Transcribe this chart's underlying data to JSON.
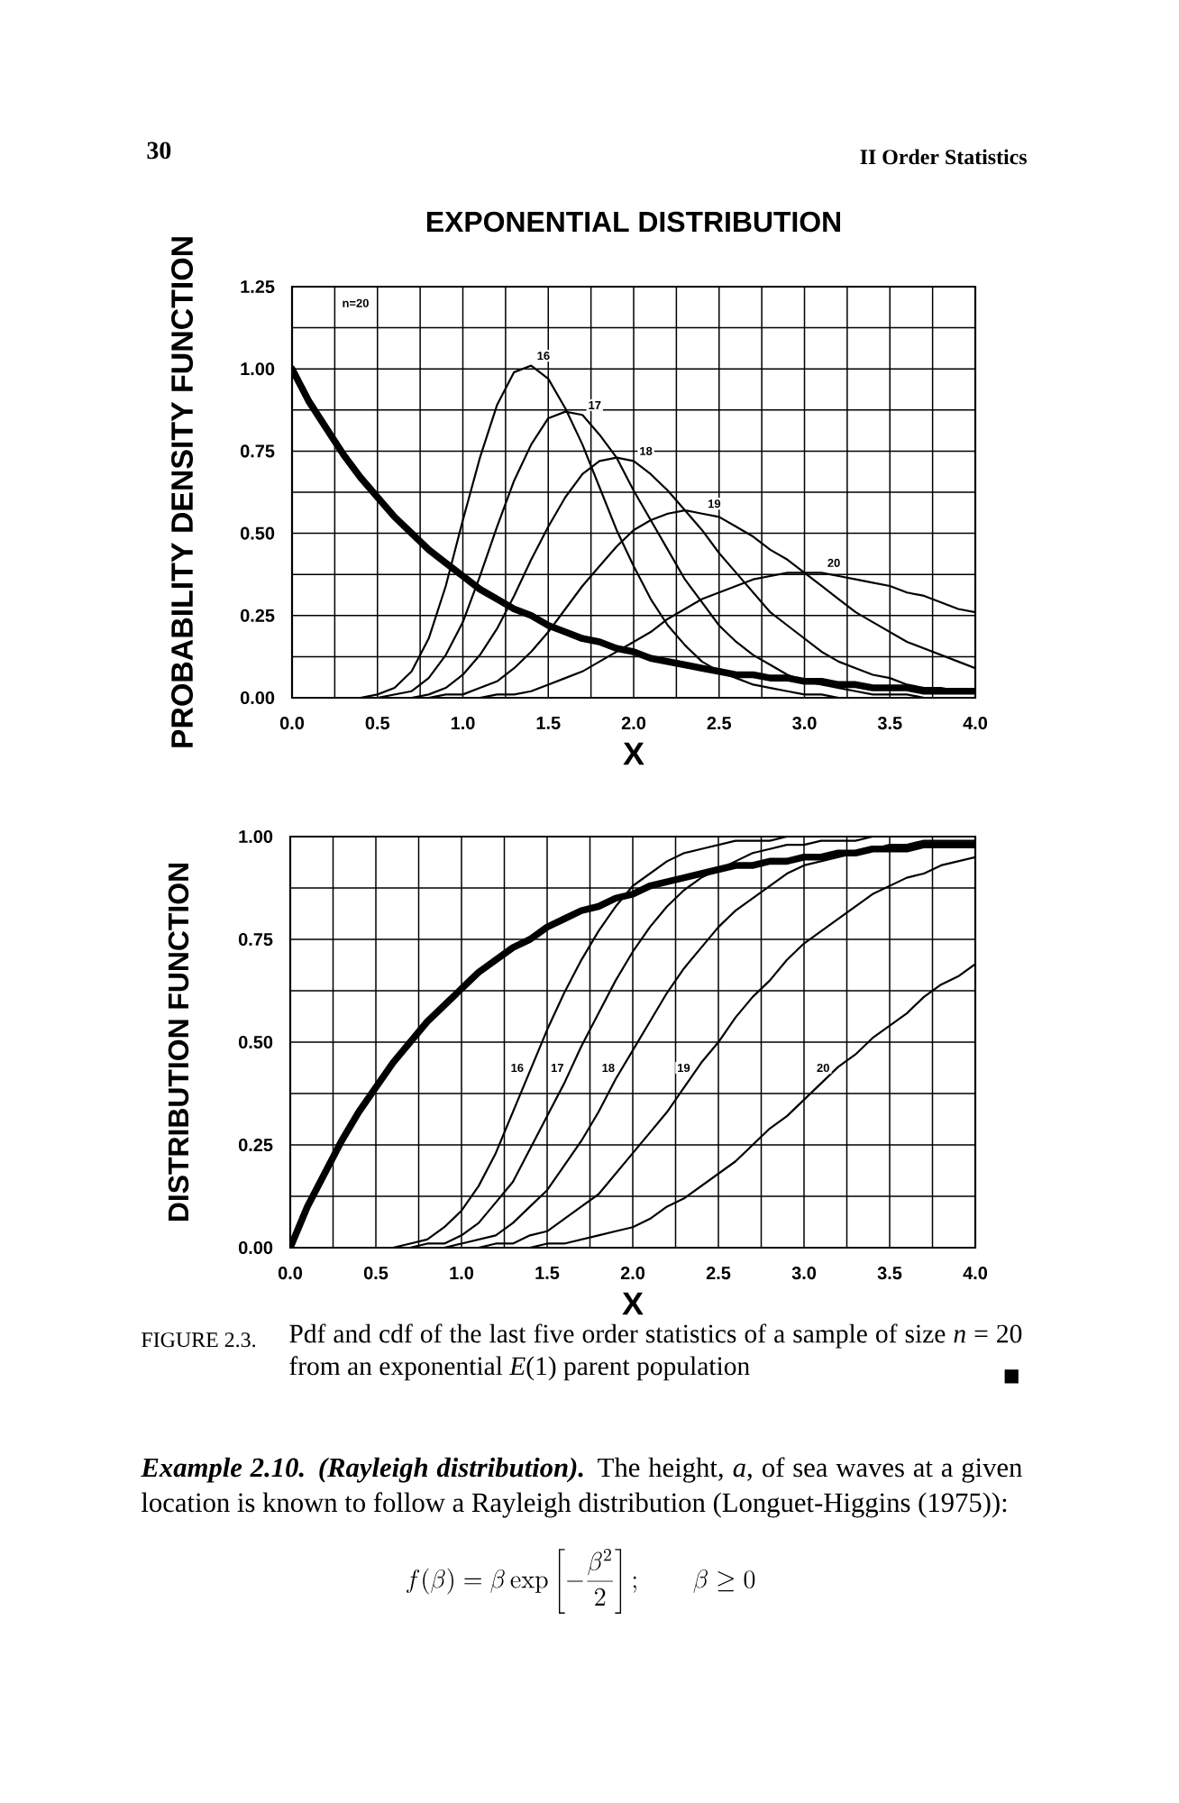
{
  "chart_data": [
    {
      "type": "line",
      "title": "EXPONENTIAL DISTRIBUTION",
      "xlabel": "X",
      "ylabel": "PROBABILITY DENSITY FUNCTION",
      "x": [
        0.0,
        0.1,
        0.2,
        0.3,
        0.4,
        0.5,
        0.6,
        0.7,
        0.8,
        0.9,
        1.0,
        1.1,
        1.2,
        1.3,
        1.4,
        1.5,
        1.6,
        1.7,
        1.8,
        1.9,
        2.0,
        2.1,
        2.2,
        2.3,
        2.4,
        2.5,
        2.6,
        2.7,
        2.8,
        2.9,
        3.0,
        3.1,
        3.2,
        3.3,
        3.4,
        3.5,
        3.6,
        3.7,
        3.8,
        3.9,
        4.0
      ],
      "series": [
        {
          "color": "#000000",
          "values": [
            1.0,
            0.9,
            0.82,
            0.74,
            0.67,
            0.61,
            0.55,
            0.5,
            0.45,
            0.41,
            0.37,
            0.33,
            0.3,
            0.27,
            0.25,
            0.22,
            0.2,
            0.18,
            0.17,
            0.15,
            0.14,
            0.12,
            0.11,
            0.1,
            0.09,
            0.08,
            0.07,
            0.07,
            0.06,
            0.06,
            0.05,
            0.05,
            0.04,
            0.04,
            0.03,
            0.03,
            0.03,
            0.02,
            0.02,
            0.02,
            0.02
          ]
        },
        {
          "name": "16",
          "color": "#000000",
          "x": [
            0.4,
            0.5,
            0.6,
            0.7,
            0.8,
            0.9,
            1.0,
            1.1,
            1.2,
            1.3,
            1.4,
            1.5,
            1.6,
            1.7,
            1.8,
            1.9,
            2.0,
            2.1,
            2.2,
            2.3,
            2.4,
            2.5,
            2.6,
            2.7,
            2.8,
            2.9,
            3.0,
            3.1,
            3.2
          ],
          "values": [
            0,
            0.01,
            0.03,
            0.08,
            0.18,
            0.34,
            0.54,
            0.73,
            0.89,
            0.99,
            1.01,
            0.97,
            0.88,
            0.77,
            0.64,
            0.51,
            0.4,
            0.3,
            0.22,
            0.16,
            0.11,
            0.08,
            0.06,
            0.04,
            0.03,
            0.02,
            0.01,
            0.01,
            0
          ]
        },
        {
          "name": "17",
          "color": "#000000",
          "x": [
            0.5,
            0.6,
            0.7,
            0.8,
            0.9,
            1.0,
            1.1,
            1.2,
            1.3,
            1.4,
            1.5,
            1.6,
            1.7,
            1.8,
            1.9,
            2.0,
            2.1,
            2.2,
            2.3,
            2.4,
            2.5,
            2.6,
            2.7,
            2.8,
            2.9,
            3.0,
            3.1,
            3.2,
            3.3,
            3.4,
            3.5,
            3.6,
            3.7
          ],
          "values": [
            0,
            0.01,
            0.02,
            0.06,
            0.13,
            0.23,
            0.37,
            0.52,
            0.66,
            0.77,
            0.85,
            0.87,
            0.86,
            0.8,
            0.73,
            0.63,
            0.54,
            0.45,
            0.36,
            0.29,
            0.22,
            0.17,
            0.13,
            0.1,
            0.07,
            0.05,
            0.04,
            0.03,
            0.02,
            0.01,
            0.01,
            0.01,
            0
          ]
        },
        {
          "name": "18",
          "color": "#000000",
          "x": [
            0.7,
            0.8,
            0.9,
            1.0,
            1.1,
            1.2,
            1.3,
            1.4,
            1.5,
            1.6,
            1.7,
            1.8,
            1.9,
            2.0,
            2.1,
            2.2,
            2.3,
            2.4,
            2.5,
            2.6,
            2.7,
            2.8,
            2.9,
            3.0,
            3.1,
            3.2,
            3.3,
            3.4,
            3.5,
            3.6,
            3.7,
            3.8,
            3.9,
            4.0
          ],
          "values": [
            0,
            0.01,
            0.03,
            0.07,
            0.13,
            0.21,
            0.31,
            0.42,
            0.52,
            0.61,
            0.68,
            0.72,
            0.73,
            0.72,
            0.68,
            0.63,
            0.57,
            0.51,
            0.44,
            0.38,
            0.32,
            0.26,
            0.22,
            0.18,
            0.14,
            0.11,
            0.09,
            0.07,
            0.06,
            0.04,
            0.03,
            0.03,
            0.02,
            0.02
          ]
        },
        {
          "name": "19",
          "color": "#000000",
          "x": [
            0.8,
            0.9,
            1.0,
            1.1,
            1.2,
            1.3,
            1.4,
            1.5,
            1.6,
            1.7,
            1.8,
            1.9,
            2.0,
            2.1,
            2.2,
            2.3,
            2.4,
            2.5,
            2.6,
            2.7,
            2.8,
            2.9,
            3.0,
            3.1,
            3.2,
            3.3,
            3.4,
            3.5,
            3.6,
            3.7,
            3.8,
            3.9,
            4.0
          ],
          "values": [
            0,
            0.01,
            0.01,
            0.03,
            0.05,
            0.09,
            0.14,
            0.2,
            0.27,
            0.34,
            0.4,
            0.46,
            0.51,
            0.54,
            0.56,
            0.57,
            0.56,
            0.55,
            0.52,
            0.49,
            0.45,
            0.42,
            0.38,
            0.34,
            0.3,
            0.26,
            0.23,
            0.2,
            0.17,
            0.15,
            0.13,
            0.11,
            0.09
          ]
        },
        {
          "name": "20",
          "color": "#000000",
          "x": [
            1.1,
            1.2,
            1.3,
            1.4,
            1.5,
            1.6,
            1.7,
            1.8,
            1.9,
            2.0,
            2.1,
            2.2,
            2.3,
            2.4,
            2.5,
            2.6,
            2.7,
            2.8,
            2.9,
            3.0,
            3.1,
            3.2,
            3.3,
            3.4,
            3.5,
            3.6,
            3.7,
            3.8,
            3.9,
            4.0
          ],
          "values": [
            0,
            0.01,
            0.01,
            0.02,
            0.04,
            0.06,
            0.08,
            0.11,
            0.14,
            0.17,
            0.2,
            0.24,
            0.27,
            0.3,
            0.32,
            0.34,
            0.36,
            0.37,
            0.38,
            0.38,
            0.38,
            0.37,
            0.36,
            0.35,
            0.34,
            0.32,
            0.31,
            0.29,
            0.27,
            0.26
          ]
        }
      ],
      "xlim": [
        0,
        4
      ],
      "ylim": [
        0,
        1.25
      ],
      "xticks": [
        {
          "value": 0,
          "label": "0.0"
        },
        {
          "value": 0.25,
          "label": null
        },
        {
          "value": 0.5,
          "label": "0.5"
        },
        {
          "value": 0.75,
          "label": null
        },
        {
          "value": 1,
          "label": "1.0"
        },
        {
          "value": 1.25,
          "label": null
        },
        {
          "value": 1.5,
          "label": "1.5"
        },
        {
          "value": 1.75,
          "label": null
        },
        {
          "value": 2,
          "label": "2.0"
        },
        {
          "value": 2.25,
          "label": null
        },
        {
          "value": 2.5,
          "label": "2.5"
        },
        {
          "value": 2.75,
          "label": null
        },
        {
          "value": 3,
          "label": "3.0"
        },
        {
          "value": 3.25,
          "label": null
        },
        {
          "value": 3.5,
          "label": "3.5"
        },
        {
          "value": 3.75,
          "label": null
        },
        {
          "value": 4,
          "label": "4.0"
        }
      ],
      "yticks": [
        {
          "value": 0,
          "label": "0.00"
        },
        {
          "value": 0.125,
          "label": null
        },
        {
          "value": 0.25,
          "label": "0.25"
        },
        {
          "value": 0.375,
          "label": null
        },
        {
          "value": 0.5,
          "label": "0.50"
        },
        {
          "value": 0.625,
          "label": null
        },
        {
          "value": 0.75,
          "label": "0.75"
        },
        {
          "value": 0.875,
          "label": null
        },
        {
          "value": 1,
          "label": "1.00"
        },
        {
          "value": 1.125,
          "label": null
        },
        {
          "value": 1.25,
          "label": "1.25"
        }
      ],
      "grid": true,
      "line_style": "solid",
      "annotations": [
        "30",
        "II Order Statistics",
        "n=20"
      ]
    },
    {
      "type": "line",
      "xlabel": "X",
      "ylabel": "DISTRIBUTION FUNCTION",
      "x": [
        0.0,
        0.1,
        0.2,
        0.3,
        0.4,
        0.5,
        0.6,
        0.7,
        0.8,
        0.9,
        1.0,
        1.1,
        1.2,
        1.3,
        1.4,
        1.5,
        1.6,
        1.7,
        1.8,
        1.9,
        2.0,
        2.1,
        2.2,
        2.3,
        2.4,
        2.5,
        2.6,
        2.7,
        2.8,
        2.9,
        3.0,
        3.1,
        3.2,
        3.3,
        3.4,
        3.5,
        3.6,
        3.7,
        3.8,
        3.9,
        4.0
      ],
      "series": [
        {
          "color": "#000000",
          "values": [
            0,
            0.1,
            0.18,
            0.26,
            0.33,
            0.39,
            0.45,
            0.5,
            0.55,
            0.59,
            0.63,
            0.67,
            0.7,
            0.73,
            0.75,
            0.78,
            0.8,
            0.82,
            0.83,
            0.85,
            0.86,
            0.88,
            0.89,
            0.9,
            0.91,
            0.92,
            0.93,
            0.93,
            0.94,
            0.94,
            0.95,
            0.95,
            0.96,
            0.96,
            0.97,
            0.97,
            0.97,
            0.98,
            0.98,
            0.98,
            0.98
          ]
        },
        {
          "name": "16",
          "color": "#000000",
          "x": [
            0.6,
            0.7,
            0.8,
            0.9,
            1.0,
            1.1,
            1.2,
            1.3,
            1.4,
            1.5,
            1.6,
            1.7,
            1.8,
            1.9,
            2.0,
            2.1,
            2.2,
            2.3,
            2.4,
            2.5,
            2.6,
            2.7,
            2.8,
            2.9
          ],
          "values": [
            0,
            0.01,
            0.02,
            0.05,
            0.09,
            0.15,
            0.23,
            0.33,
            0.43,
            0.53,
            0.62,
            0.7,
            0.77,
            0.83,
            0.88,
            0.91,
            0.94,
            0.96,
            0.97,
            0.98,
            0.99,
            0.99,
            0.99,
            1.0
          ]
        },
        {
          "name": "17",
          "color": "#000000",
          "x": [
            0.7,
            0.8,
            0.9,
            1.0,
            1.1,
            1.2,
            1.3,
            1.4,
            1.5,
            1.6,
            1.7,
            1.8,
            1.9,
            2.0,
            2.1,
            2.2,
            2.3,
            2.4,
            2.5,
            2.6,
            2.7,
            2.8,
            2.9,
            3.0,
            3.1,
            3.2,
            3.3,
            3.4
          ],
          "values": [
            0,
            0.01,
            0.01,
            0.03,
            0.06,
            0.11,
            0.16,
            0.24,
            0.32,
            0.4,
            0.49,
            0.57,
            0.65,
            0.72,
            0.78,
            0.83,
            0.87,
            0.9,
            0.92,
            0.94,
            0.96,
            0.97,
            0.98,
            0.98,
            0.99,
            0.99,
            0.99,
            1.0
          ]
        },
        {
          "name": "18",
          "color": "#000000",
          "x": [
            0.9,
            1.0,
            1.1,
            1.2,
            1.3,
            1.4,
            1.5,
            1.6,
            1.7,
            1.8,
            1.9,
            2.0,
            2.1,
            2.2,
            2.3,
            2.4,
            2.5,
            2.6,
            2.7,
            2.8,
            2.9,
            3.0,
            3.1,
            3.2,
            3.3,
            3.4,
            3.5,
            3.6,
            3.7,
            3.8,
            3.9,
            4.0
          ],
          "values": [
            0,
            0.01,
            0.02,
            0.03,
            0.06,
            0.1,
            0.14,
            0.2,
            0.26,
            0.33,
            0.41,
            0.48,
            0.55,
            0.62,
            0.68,
            0.73,
            0.78,
            0.82,
            0.85,
            0.88,
            0.91,
            0.93,
            0.94,
            0.95,
            0.96,
            0.97,
            0.98,
            0.98,
            0.99,
            0.99,
            0.99,
            0.99
          ]
        },
        {
          "name": "19",
          "color": "#000000",
          "x": [
            1.1,
            1.2,
            1.3,
            1.4,
            1.5,
            1.6,
            1.7,
            1.8,
            1.9,
            2.0,
            2.1,
            2.2,
            2.3,
            2.4,
            2.5,
            2.6,
            2.7,
            2.8,
            2.9,
            3.0,
            3.1,
            3.2,
            3.3,
            3.4,
            3.5,
            3.6,
            3.7,
            3.8,
            3.9,
            4.0
          ],
          "values": [
            0,
            0.01,
            0.01,
            0.03,
            0.04,
            0.07,
            0.1,
            0.13,
            0.18,
            0.23,
            0.28,
            0.33,
            0.39,
            0.45,
            0.5,
            0.56,
            0.61,
            0.65,
            0.7,
            0.74,
            0.77,
            0.8,
            0.83,
            0.86,
            0.88,
            0.9,
            0.91,
            0.93,
            0.94,
            0.95
          ]
        },
        {
          "name": "20",
          "color": "#000000",
          "x": [
            1.4,
            1.5,
            1.6,
            1.7,
            1.8,
            1.9,
            2.0,
            2.1,
            2.2,
            2.3,
            2.4,
            2.5,
            2.6,
            2.7,
            2.8,
            2.9,
            3.0,
            3.1,
            3.2,
            3.3,
            3.4,
            3.5,
            3.6,
            3.7,
            3.8,
            3.9,
            4.0
          ],
          "values": [
            0,
            0.01,
            0.01,
            0.02,
            0.03,
            0.04,
            0.05,
            0.07,
            0.1,
            0.12,
            0.15,
            0.18,
            0.21,
            0.25,
            0.29,
            0.32,
            0.36,
            0.4,
            0.44,
            0.47,
            0.51,
            0.54,
            0.57,
            0.61,
            0.64,
            0.66,
            0.69
          ]
        }
      ],
      "xlim": [
        0,
        4
      ],
      "ylim": [
        0,
        1
      ],
      "xticks": [
        {
          "value": 0,
          "label": "0.0"
        },
        {
          "value": 0.25,
          "label": null
        },
        {
          "value": 0.5,
          "label": "0.5"
        },
        {
          "value": 0.75,
          "label": null
        },
        {
          "value": 1,
          "label": "1.0"
        },
        {
          "value": 1.25,
          "label": null
        },
        {
          "value": 1.5,
          "label": "1.5"
        },
        {
          "value": 1.75,
          "label": null
        },
        {
          "value": 2,
          "label": "2.0"
        },
        {
          "value": 2.25,
          "label": null
        },
        {
          "value": 2.5,
          "label": "2.5"
        },
        {
          "value": 2.75,
          "label": null
        },
        {
          "value": 3,
          "label": "3.0"
        },
        {
          "value": 3.25,
          "label": null
        },
        {
          "value": 3.5,
          "label": "3.5"
        },
        {
          "value": 3.75,
          "label": null
        },
        {
          "value": 4,
          "label": "4.0"
        }
      ],
      "yticks": [
        {
          "value": 0,
          "label": "0.00"
        },
        {
          "value": 0.125,
          "label": null
        },
        {
          "value": 0.25,
          "label": "0.25"
        },
        {
          "value": 0.375,
          "label": null
        },
        {
          "value": 0.5,
          "label": "0.50"
        },
        {
          "value": 0.625,
          "label": null
        },
        {
          "value": 0.75,
          "label": "0.75"
        },
        {
          "value": 0.875,
          "label": null
        },
        {
          "value": 1,
          "label": "1.00"
        }
      ],
      "grid": true,
      "line_style": "solid",
      "annotations": [
        "FIGURE 2.3.",
        "Pdf and cdf of the last five order statistics of a sample of size *n* = 20 from an exponential *E*(1) parent population",
        "■",
        "**Example 2.10. (Rayleigh distribution).** The height, *a*, of sea waves at a given location is known to follow a Rayleigh distribution (Longuet-Higgins (1975)):",
        "f(\\beta) = \\beta\\exp\\left[-\\frac{\\beta^{2}}{2}\\right]; \\qquad \\beta \\geq 0"
      ]
    }
  ]
}
